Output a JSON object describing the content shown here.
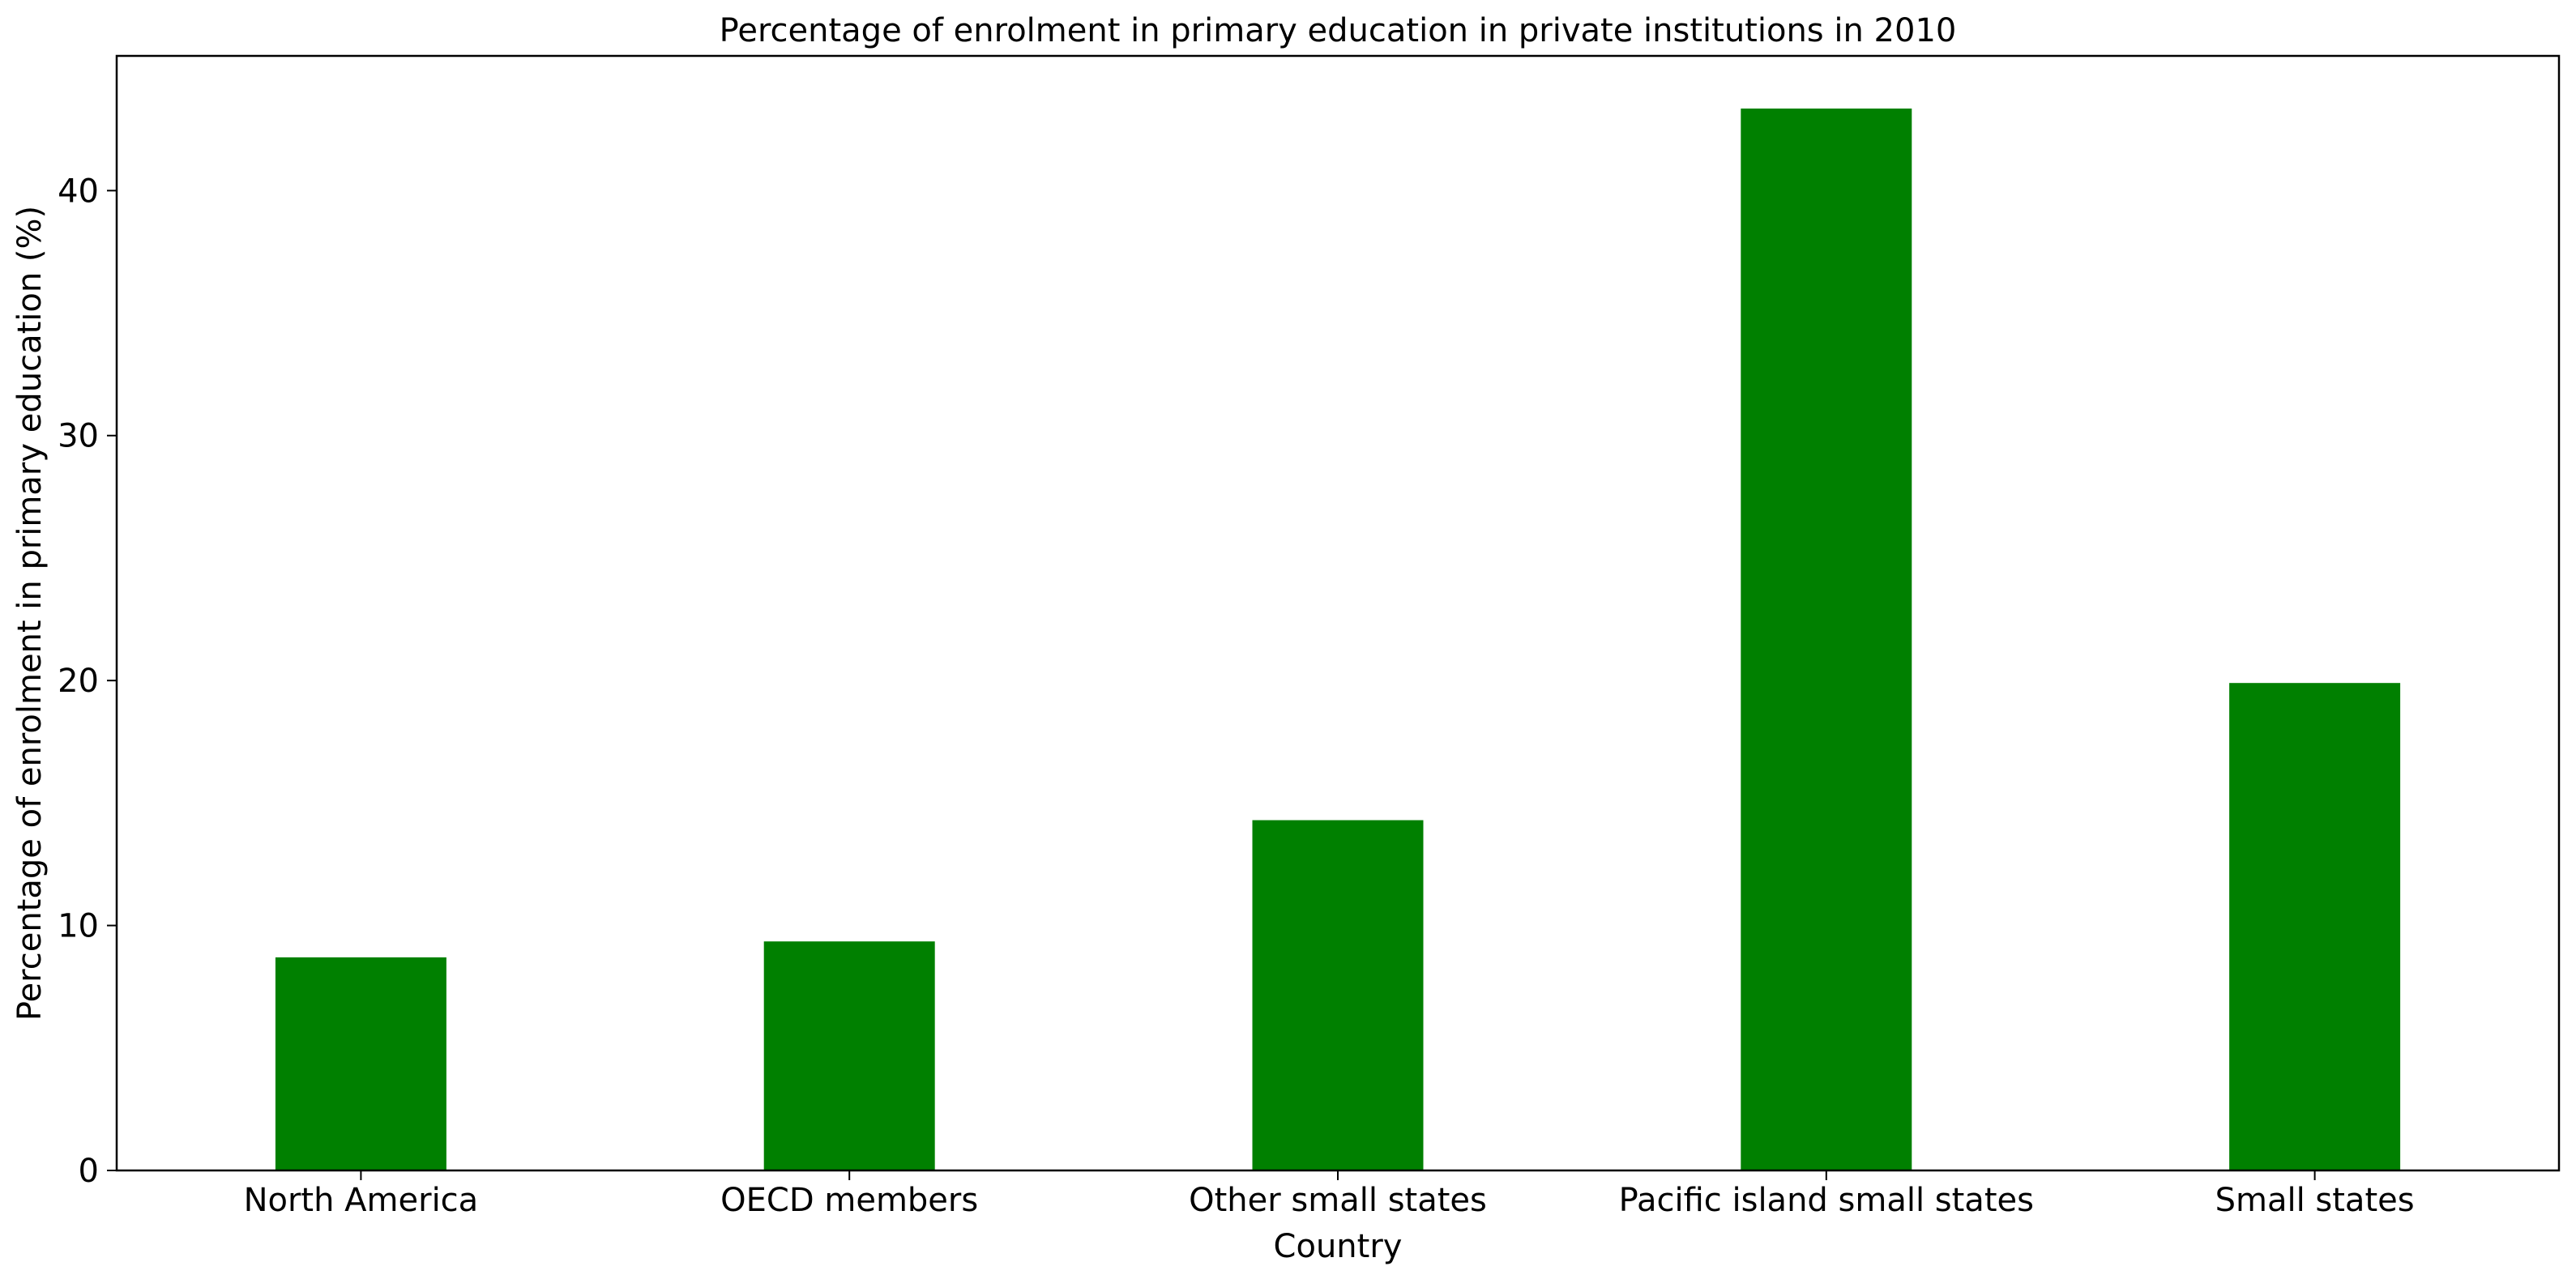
{
  "chart_data": {
    "type": "bar",
    "title": "Percentage of enrolment in primary education in private institutions in 2010",
    "xlabel": "Country",
    "ylabel": "Percentage of enrolment in primary education (%)",
    "categories": [
      "North America",
      "OECD members",
      "Other small states",
      "Pacific island small states",
      "Small states"
    ],
    "values": [
      8.7,
      9.35,
      14.3,
      43.35,
      19.9
    ],
    "ylim": [
      0,
      45.5
    ],
    "yticks": [
      0,
      10,
      20,
      30,
      40
    ],
    "bar_color": "#008000",
    "grid": false,
    "legend": "none"
  }
}
